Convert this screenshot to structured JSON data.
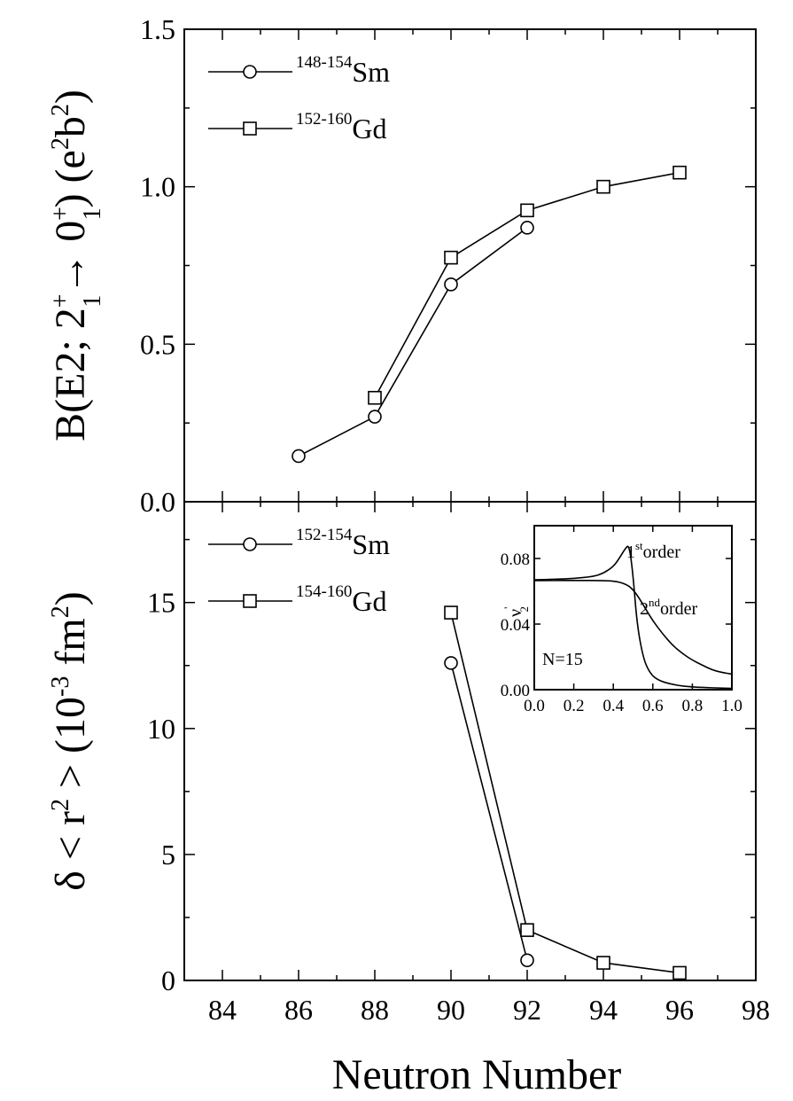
{
  "chart_data": [
    {
      "type": "line",
      "panel": "top",
      "xlabel": "Neutron Number",
      "ylabel": {
        "parts": [
          {
            "t": "B(E2; 2",
            "sup": "+",
            "sub": "1"
          },
          {
            "t": "→ 0",
            "sup": "+",
            "sub": "1"
          },
          {
            "t": ") (e",
            "sup": "2",
            "sub": ""
          },
          {
            "t": "b",
            "sup": "2",
            "sub": ""
          },
          {
            "t": ")",
            "sup": "",
            "sub": ""
          }
        ]
      },
      "xlim": [
        83,
        98
      ],
      "ylim": [
        0,
        1.5
      ],
      "yticks": [
        "0.0",
        "0.5",
        "1.0",
        "1.5"
      ],
      "legend_position": "top-left",
      "series": [
        {
          "name": "Sm",
          "name_sup": "148-154",
          "marker": "circle",
          "x": [
            86,
            88,
            90,
            92
          ],
          "y": [
            0.145,
            0.27,
            0.69,
            0.87
          ]
        },
        {
          "name": "Gd",
          "name_sup": "152-160",
          "marker": "square",
          "x": [
            88,
            90,
            92,
            94,
            96
          ],
          "y": [
            0.33,
            0.775,
            0.925,
            1.0,
            1.045
          ]
        }
      ]
    },
    {
      "type": "line",
      "panel": "bottom",
      "xlabel": "Neutron Number",
      "ylabel": {
        "parts": [
          {
            "t": "δ < r",
            "sup": "2",
            "sub": ""
          },
          {
            "t": " > (10",
            "sup": "-3",
            "sub": ""
          },
          {
            "t": " fm",
            "sup": "2",
            "sub": ""
          },
          {
            "t": ")",
            "sup": "",
            "sub": ""
          }
        ]
      },
      "xlim": [
        83,
        98
      ],
      "ylim": [
        0,
        19
      ],
      "xticks": [
        "84",
        "86",
        "88",
        "90",
        "92",
        "94",
        "96",
        "98"
      ],
      "yticks": [
        "0",
        "5",
        "10",
        "15"
      ],
      "legend_position": "top-left",
      "series": [
        {
          "name": "Sm",
          "name_sup": "152-154",
          "marker": "circle",
          "x": [
            90,
            92
          ],
          "y": [
            12.6,
            0.8
          ]
        },
        {
          "name": "Gd",
          "name_sup": "154-160",
          "marker": "square",
          "x": [
            90,
            92,
            94,
            96
          ],
          "y": [
            14.6,
            2.0,
            0.7,
            0.3
          ]
        }
      ]
    },
    {
      "type": "line",
      "panel": "inset",
      "ylabel": {
        "t": "ν",
        "sup": "'",
        "sub": "2"
      },
      "xlim": [
        0,
        1
      ],
      "ylim": [
        0,
        0.1
      ],
      "xticks": [
        "0.0",
        "0.2",
        "0.4",
        "0.6",
        "0.8",
        "1.0"
      ],
      "yticks": [
        "0.00",
        "0.04",
        "0.08"
      ],
      "annotations": [
        {
          "t": "1",
          "sup": "st",
          "rest": "order"
        },
        {
          "t": "2",
          "sup": "nd",
          "rest": "order"
        },
        {
          "t": "N=15",
          "sup": "",
          "rest": ""
        }
      ],
      "series": [
        {
          "name": "1st order",
          "x": [
            0,
            0.1,
            0.2,
            0.3,
            0.35,
            0.4,
            0.43,
            0.46,
            0.48,
            0.5,
            0.52,
            0.55,
            0.58,
            0.62,
            0.7,
            0.8,
            1.0
          ],
          "y": [
            0.067,
            0.0673,
            0.0678,
            0.069,
            0.071,
            0.075,
            0.08,
            0.086,
            0.0885,
            0.07,
            0.04,
            0.02,
            0.011,
            0.006,
            0.003,
            0.0015,
            0.0008
          ]
        },
        {
          "name": "2nd order",
          "x": [
            0,
            0.2,
            0.35,
            0.42,
            0.47,
            0.5,
            0.53,
            0.56,
            0.6,
            0.65,
            0.7,
            0.75,
            0.8,
            0.85,
            0.9,
            0.95,
            1.0
          ],
          "y": [
            0.0665,
            0.0666,
            0.0666,
            0.066,
            0.064,
            0.061,
            0.056,
            0.05,
            0.042,
            0.034,
            0.027,
            0.022,
            0.018,
            0.015,
            0.012,
            0.0105,
            0.0095
          ]
        }
      ]
    }
  ]
}
